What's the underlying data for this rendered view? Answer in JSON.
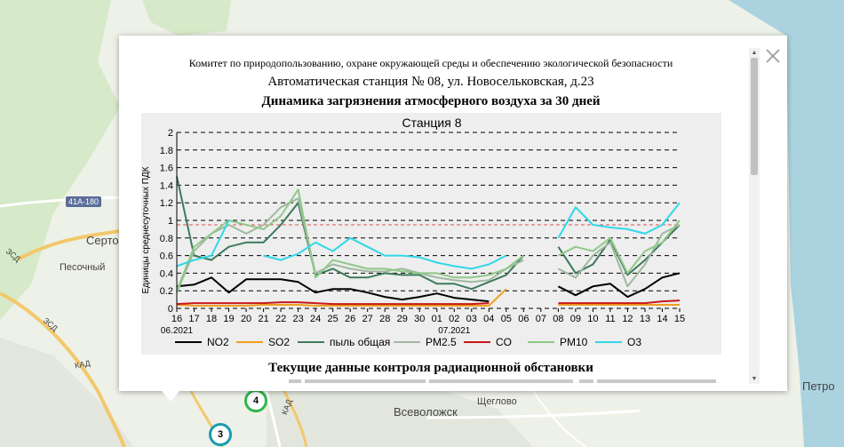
{
  "map": {
    "labels": {
      "town_a": "Серто",
      "town_b": "Песочный",
      "town_c": "Всеволожск",
      "town_d": "Щеглово",
      "town_e": "Петро"
    },
    "roads": {
      "shield": "41А-180",
      "zsd_a": "ЗСД",
      "zsd_b": "ЗСД",
      "kad_a": "КАД",
      "kad_b": "КАД"
    },
    "markers": [
      {
        "number": "4",
        "color": "#2db84a"
      },
      {
        "number": "3",
        "color": "#1a9bb0"
      }
    ]
  },
  "popup": {
    "close_icon": "close-icon",
    "committee": "Комитет по природопользованию, охране окружающей среды и обеспечению экологической безопасности",
    "station": "Автоматическая станция № 08, ул. Новосельковская, д.23",
    "chart_heading": "Динамика загрязнения атмосферного воздуха за 30 дней",
    "radiation_heading": "Текущие данные контроля радиационной обстановки"
  },
  "chart_data": {
    "type": "line",
    "title": "Станция 8",
    "ylabel": "Единицы среднесуточных ПДК",
    "ylim": [
      0,
      2
    ],
    "yticks": [
      "0",
      "0.2",
      "0.4",
      "0.6",
      "0.8",
      "1",
      "1.2",
      "1.4",
      "1.6",
      "1.8",
      "2"
    ],
    "categories": [
      "16",
      "17",
      "18",
      "19",
      "20",
      "21",
      "22",
      "23",
      "24",
      "25",
      "26",
      "27",
      "28",
      "29",
      "30",
      "01",
      "02",
      "03",
      "04",
      "05",
      "06",
      "07",
      "08",
      "09",
      "10",
      "11",
      "12",
      "13",
      "14",
      "15"
    ],
    "month_labels": [
      {
        "text": "06.2021",
        "at_category": "16"
      },
      {
        "text": "07.2021",
        "at_category": "02"
      }
    ],
    "reference_line": {
      "value": 0.95,
      "color": "#e05050",
      "style": "dashed"
    },
    "grid": "horizontal dashed",
    "legend_position": "bottom",
    "series": [
      {
        "name": "NO2",
        "color": "#000000",
        "values": [
          0.25,
          0.27,
          0.35,
          0.18,
          0.33,
          0.33,
          0.33,
          0.3,
          0.18,
          0.22,
          0.22,
          0.18,
          0.13,
          0.1,
          0.13,
          0.17,
          0.12,
          0.1,
          0.08,
          null,
          null,
          null,
          0.25,
          0.15,
          0.25,
          0.28,
          0.13,
          0.22,
          0.35,
          0.4
        ]
      },
      {
        "name": "SO2",
        "color": "#f0a020",
        "values": [
          0.04,
          0.03,
          0.03,
          0.03,
          0.03,
          0.04,
          0.04,
          0.04,
          0.03,
          0.03,
          0.03,
          0.03,
          0.03,
          0.03,
          0.03,
          0.03,
          0.03,
          0.03,
          0.03,
          0.22,
          null,
          null,
          0.04,
          0.04,
          0.04,
          0.04,
          0.04,
          0.04,
          0.04,
          0.04
        ]
      },
      {
        "name": "пыль общая",
        "color": "#3d7a5c",
        "values": [
          1.5,
          0.6,
          0.55,
          0.7,
          0.75,
          0.75,
          0.95,
          1.2,
          0.38,
          0.45,
          0.35,
          0.35,
          0.4,
          0.38,
          0.38,
          0.28,
          0.28,
          0.22,
          0.3,
          0.38,
          0.6,
          null,
          0.7,
          0.4,
          0.5,
          0.78,
          0.38,
          0.55,
          0.75,
          0.95
        ]
      },
      {
        "name": "PM2.5",
        "color": "#a0b8a0",
        "values": [
          0.18,
          0.65,
          0.85,
          0.95,
          0.85,
          0.95,
          1.15,
          1.25,
          0.4,
          0.5,
          0.45,
          0.42,
          0.42,
          0.45,
          0.4,
          0.35,
          0.32,
          0.3,
          0.32,
          0.45,
          0.55,
          null,
          0.45,
          0.35,
          0.6,
          0.75,
          0.25,
          0.5,
          0.85,
          0.95
        ]
      },
      {
        "name": "CO",
        "color": "#c81818",
        "values": [
          0.05,
          0.06,
          0.06,
          0.06,
          0.06,
          0.06,
          0.07,
          0.07,
          0.06,
          0.05,
          0.05,
          0.05,
          0.05,
          0.05,
          0.05,
          0.05,
          0.05,
          0.05,
          0.06,
          null,
          null,
          null,
          0.06,
          0.06,
          0.06,
          0.06,
          0.06,
          0.06,
          0.08,
          0.09
        ]
      },
      {
        "name": "PM10",
        "color": "#90c888",
        "values": [
          0.2,
          0.7,
          0.85,
          1.0,
          0.95,
          0.9,
          1.05,
          1.35,
          0.35,
          0.55,
          0.5,
          0.45,
          0.45,
          0.42,
          0.4,
          0.4,
          0.35,
          0.35,
          0.38,
          0.45,
          0.6,
          null,
          0.6,
          0.7,
          0.65,
          0.8,
          0.4,
          0.65,
          0.75,
          1.0
        ]
      },
      {
        "name": "O3",
        "color": "#30d8e8",
        "values": [
          0.48,
          0.55,
          0.6,
          1.0,
          null,
          0.6,
          0.55,
          0.62,
          0.75,
          0.65,
          0.8,
          0.7,
          0.6,
          0.6,
          0.58,
          0.52,
          0.48,
          0.45,
          0.5,
          0.6,
          null,
          null,
          0.8,
          1.15,
          0.95,
          0.92,
          0.9,
          0.85,
          0.95,
          1.2
        ]
      }
    ]
  }
}
